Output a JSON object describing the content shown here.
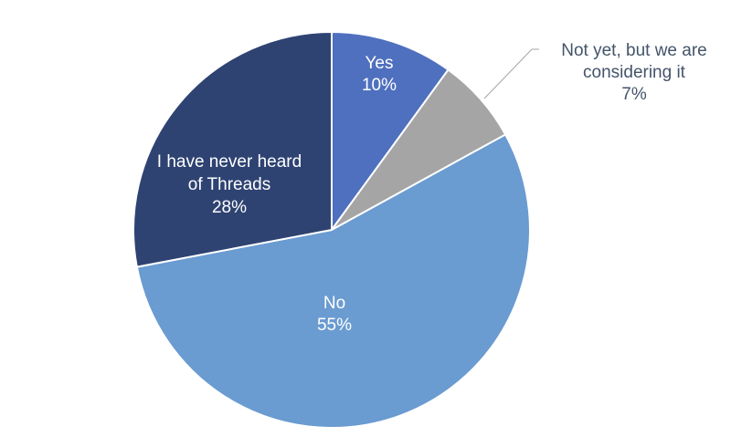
{
  "chart_data": {
    "type": "pie",
    "title": "",
    "slices": [
      {
        "label_lines": [
          "Yes"
        ],
        "percent_label": "10%",
        "value": 10,
        "color": "#4F70BF",
        "text_color": "#ffffff"
      },
      {
        "label_lines": [
          "Not yet, but we are",
          "considering it"
        ],
        "percent_label": "7%",
        "value": 7,
        "color": "#A5A5A5",
        "text_color": "#44546A"
      },
      {
        "label_lines": [
          "No"
        ],
        "percent_label": "55%",
        "value": 55,
        "color": "#6A9BD1",
        "text_color": "#ffffff"
      },
      {
        "label_lines": [
          "I have never heard",
          "of Threads"
        ],
        "percent_label": "28%",
        "value": 28,
        "color": "#2E4372",
        "text_color": "#ffffff"
      }
    ],
    "start_angle_deg": 0,
    "direction": "clockwise",
    "legend": "none",
    "slice_border_color": "#ffffff"
  }
}
